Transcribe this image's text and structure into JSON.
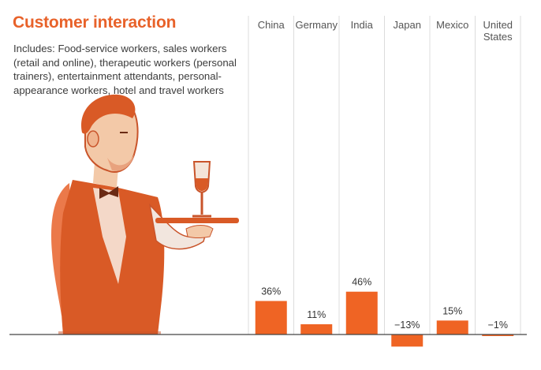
{
  "title": "Customer interaction",
  "subtitle": "Includes: Food-service workers, sales workers (retail and online), therapeutic workers (personal trainers), entertainment attendants, personal-appearance workers, hotel and travel workers",
  "illustration_icon": "waiter-with-wine-glass-icon",
  "colors": {
    "accent": "#e8622a",
    "bar": "#ef6424",
    "gridline": "#dcdcdc",
    "axis": "#444444"
  },
  "chart_data": {
    "type": "bar",
    "title": "Customer interaction",
    "categories": [
      "China",
      "Germany",
      "India",
      "Japan",
      "Mexico",
      "United States"
    ],
    "category_lines": [
      [
        "China"
      ],
      [
        "Germany"
      ],
      [
        "India"
      ],
      [
        "Japan"
      ],
      [
        "Mexico"
      ],
      [
        "United",
        "States"
      ]
    ],
    "values": [
      36,
      11,
      46,
      -13,
      15,
      -1
    ],
    "value_labels": [
      "36%",
      "11%",
      "46%",
      "−13%",
      "15%",
      "−1%"
    ],
    "unit": "%",
    "ylim": [
      -15,
      50
    ],
    "grid": true,
    "legend": "none"
  }
}
